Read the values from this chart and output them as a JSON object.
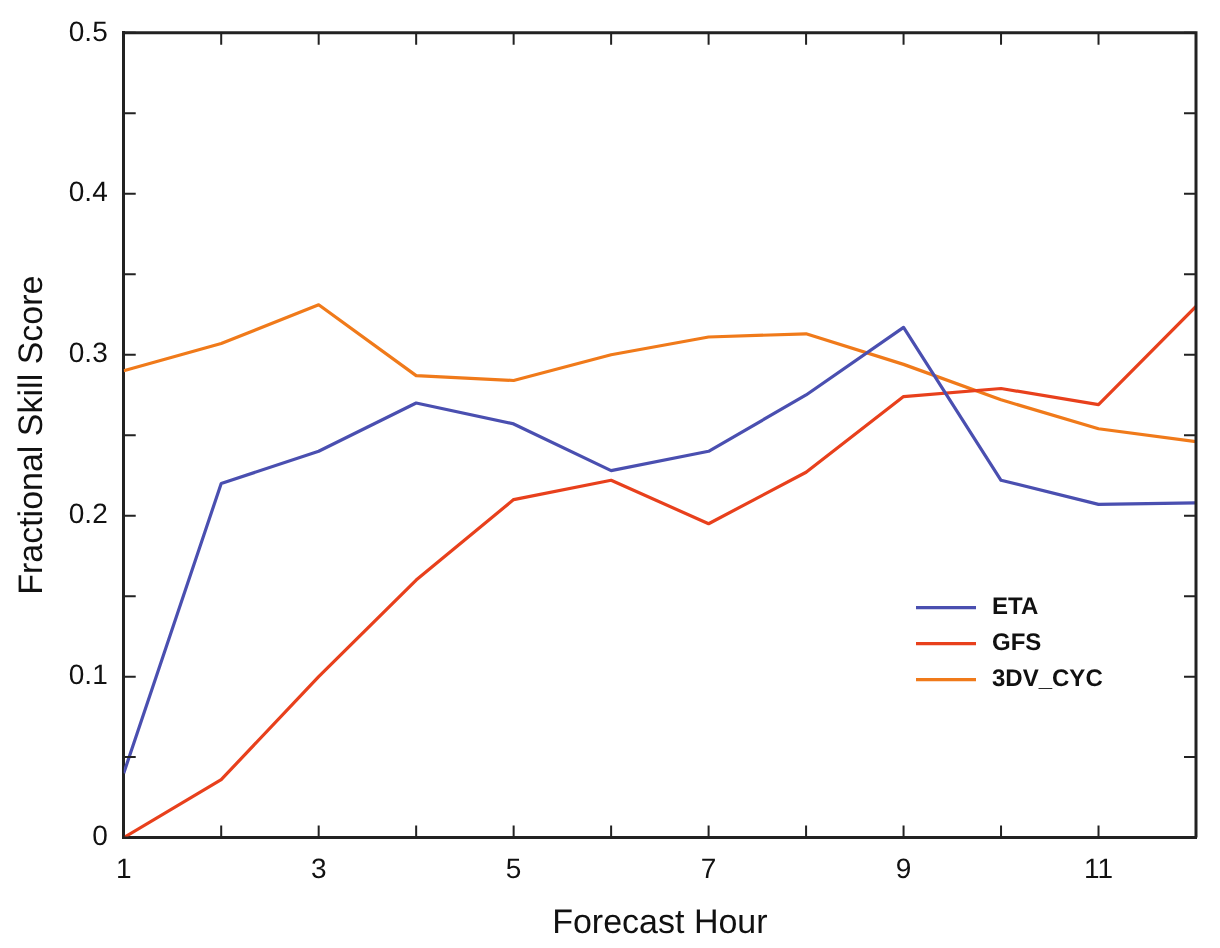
{
  "chart_data": {
    "type": "line",
    "xlabel": "Forecast Hour",
    "ylabel": "Fractional Skill Score",
    "x": [
      1,
      2,
      3,
      4,
      5,
      6,
      7,
      8,
      9,
      10,
      11,
      12
    ],
    "xlim": [
      1,
      12
    ],
    "xticks": [
      1,
      {
        "value": 2,
        "label": null
      },
      3,
      {
        "value": 4,
        "label": null
      },
      5,
      {
        "value": 6,
        "label": null
      },
      7,
      {
        "value": 8,
        "label": null
      },
      9,
      {
        "value": 10,
        "label": null
      },
      11
    ],
    "ylim": [
      0,
      0.5
    ],
    "yticks": [
      0,
      {
        "value": 0.05,
        "label": null
      },
      0.1,
      {
        "value": 0.15,
        "label": null
      },
      0.2,
      {
        "value": 0.25,
        "label": null
      },
      0.3,
      {
        "value": 0.35,
        "label": null
      },
      0.4,
      {
        "value": 0.45,
        "label": null
      },
      0.5
    ],
    "grid": false,
    "legend": "bottom right",
    "marker": "none",
    "line_style": "solid",
    "series": [
      {
        "name": "ETA",
        "color": "#4a4fb0",
        "values": [
          0.04,
          0.22,
          0.24,
          0.27,
          0.257,
          0.228,
          0.24,
          0.275,
          0.317,
          0.222,
          0.207,
          0.208
        ]
      },
      {
        "name": "GFS",
        "color": "#e8401c",
        "values": [
          0,
          0.036,
          0.1,
          0.16,
          0.21,
          0.222,
          0.195,
          0.227,
          0.274,
          0.279,
          0.269,
          0.33
        ]
      },
      {
        "name": "3DV_CYC",
        "color": "#f07a1a",
        "values": [
          0.29,
          0.307,
          0.331,
          0.287,
          0.284,
          0.3,
          0.311,
          0.313,
          0.294,
          0.272,
          0.254,
          0.246
        ]
      }
    ]
  }
}
